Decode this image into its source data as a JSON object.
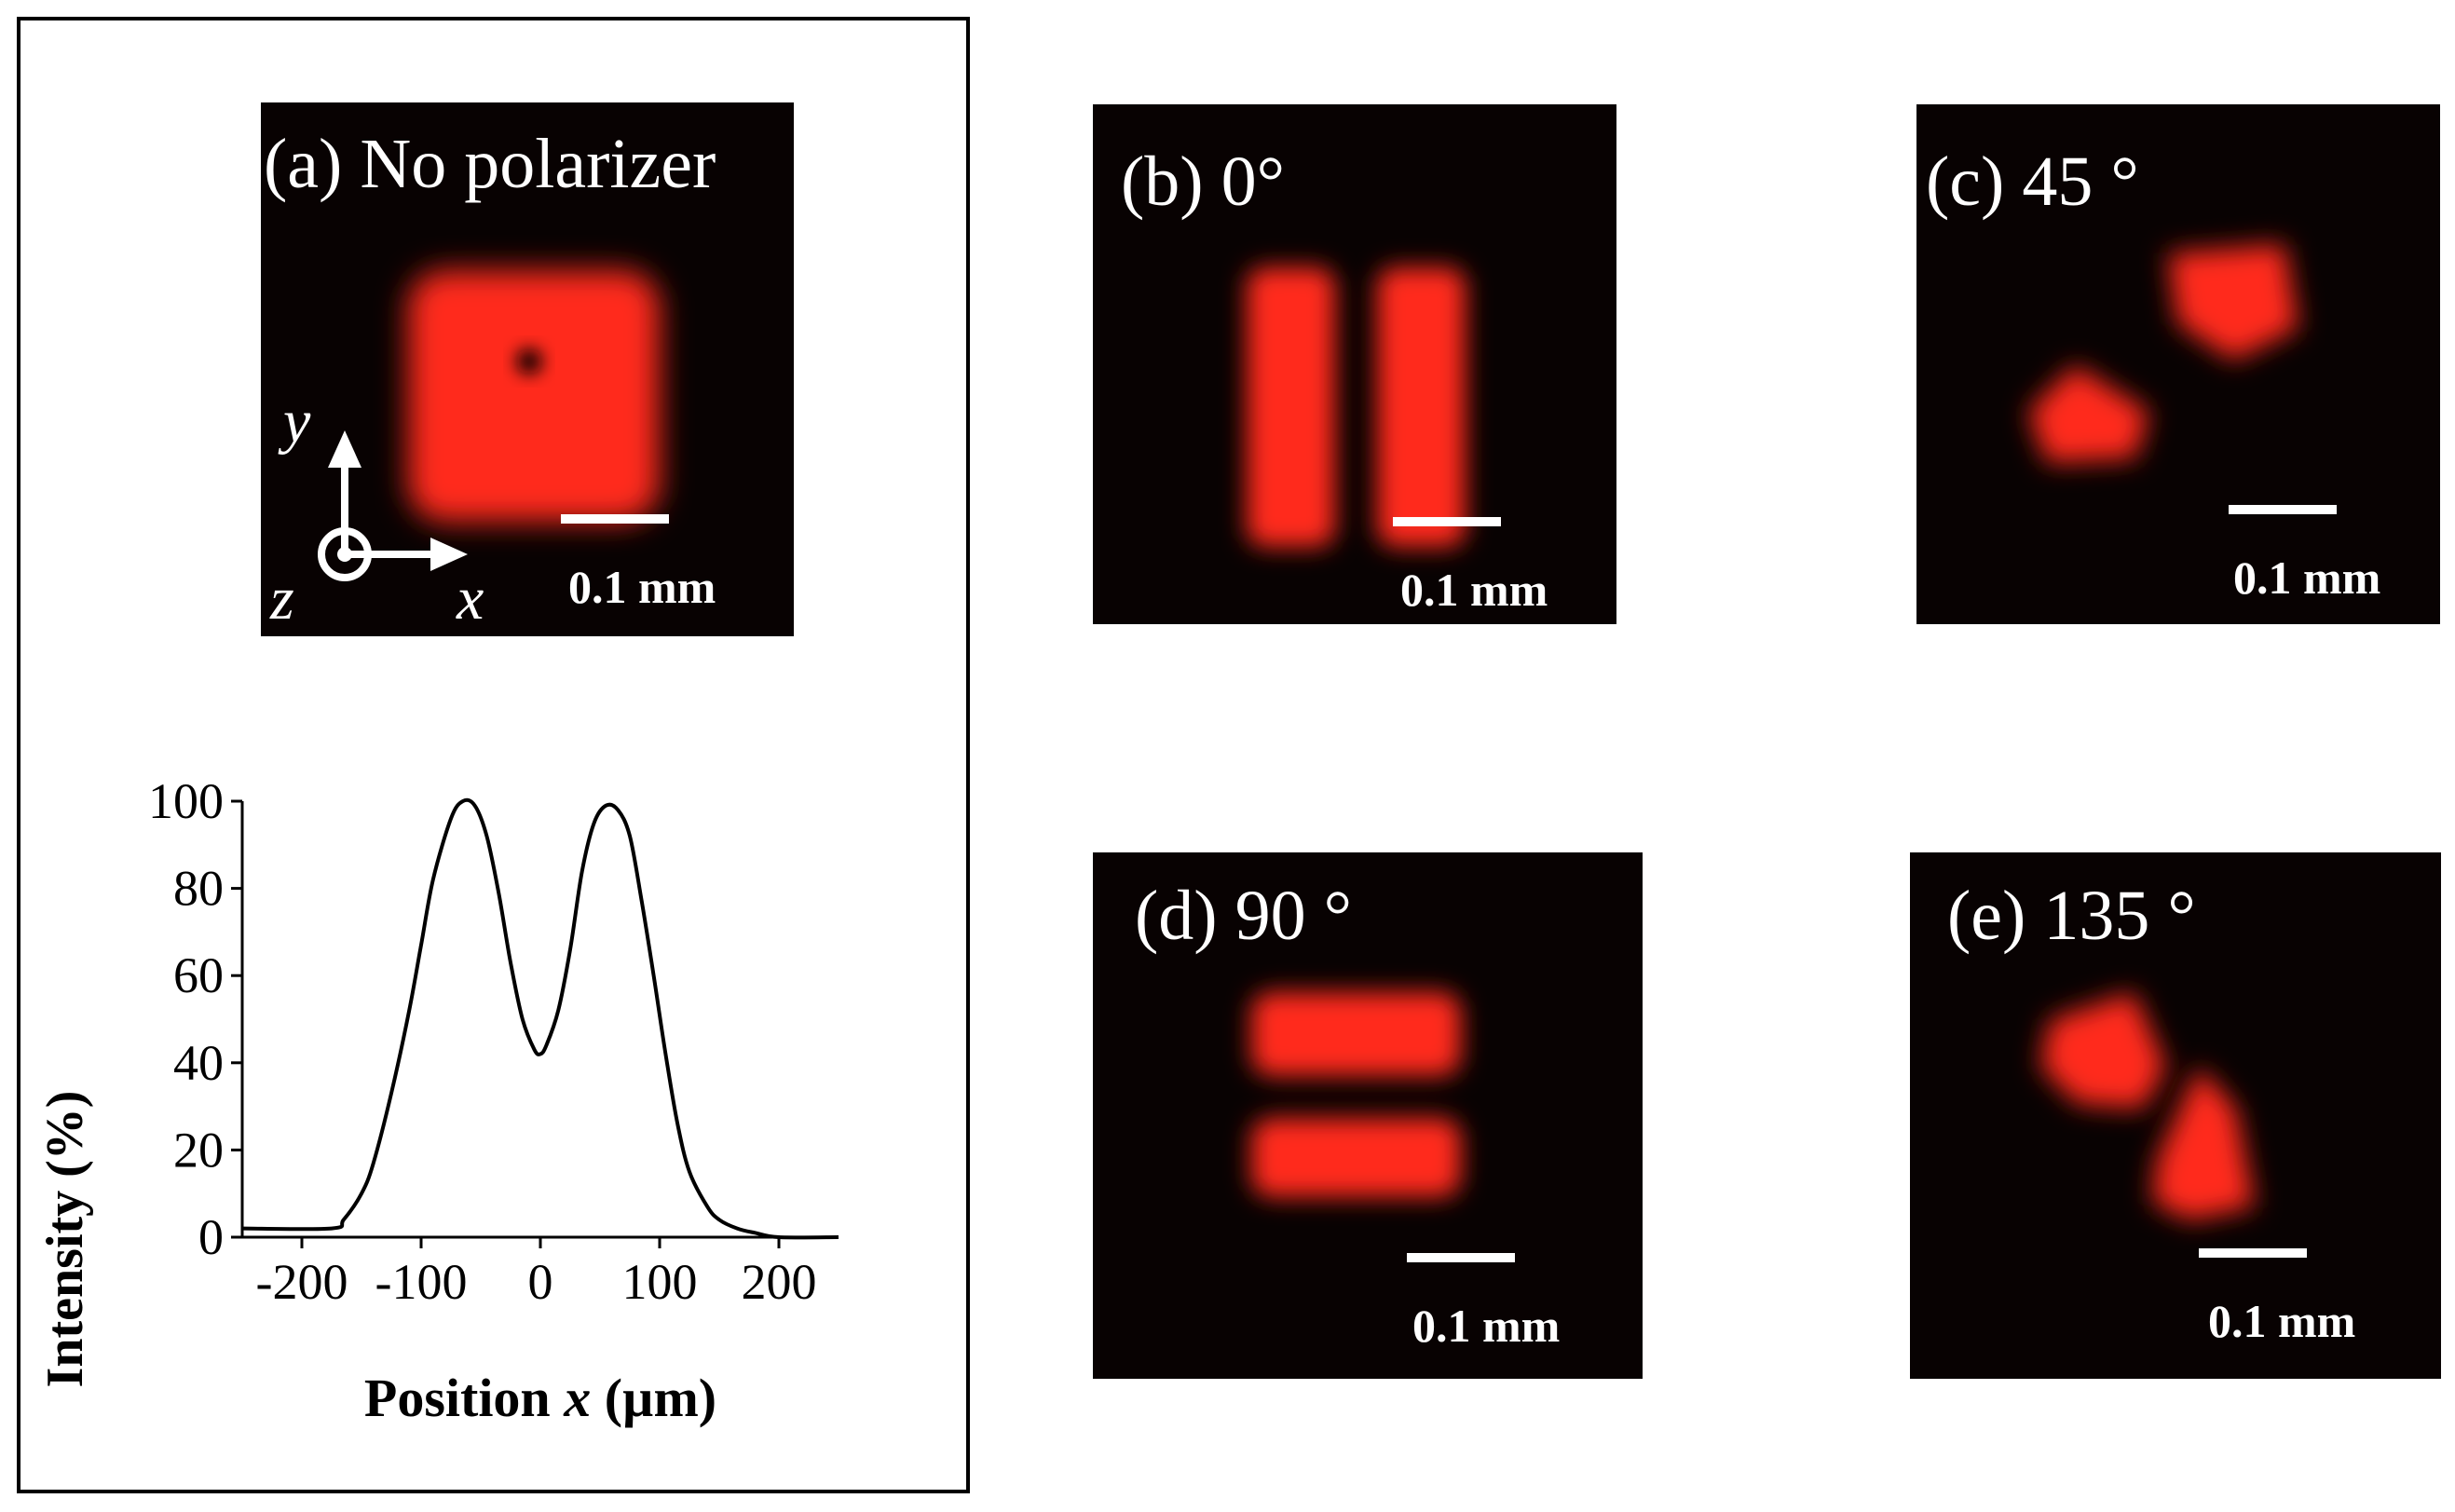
{
  "panels": [
    {
      "id": "a",
      "label": "(a) No polarizer",
      "scale_label": "0.1 mm"
    },
    {
      "id": "b",
      "label": "(b) 0°",
      "scale_label": "0.1 mm"
    },
    {
      "id": "c",
      "label": "(c) 45 °",
      "scale_label": "0.1 mm"
    },
    {
      "id": "d",
      "label": "(d) 90 °",
      "scale_label": "0.1 mm"
    },
    {
      "id": "e",
      "label": "(e) 135 °",
      "scale_label": "0.1 mm"
    }
  ],
  "axes_indicator": {
    "x": "x",
    "y": "y",
    "z": "z"
  },
  "colors": {
    "beam": "#ff2a1a",
    "background": "#080202"
  },
  "chart_data": {
    "type": "line",
    "xlabel": "Position x (µm)",
    "ylabel": "Intensity (%)",
    "xlim": [
      -250,
      250
    ],
    "ylim": [
      0,
      100
    ],
    "xticks": [
      -200,
      -100,
      0,
      100,
      200
    ],
    "yticks": [
      0,
      20,
      40,
      60,
      80,
      100
    ],
    "tick_labels_x": [
      "-200",
      "-100",
      "0",
      "100",
      "200"
    ],
    "tick_labels_y": [
      "0",
      "20",
      "40",
      "60",
      "80",
      "100"
    ],
    "grid": false,
    "series": [
      {
        "x": [
          -250,
          -175,
          -165,
          -150,
          -140,
          -125,
          -110,
          -100,
          -90,
          -75,
          -65,
          -55,
          -45,
          -35,
          -25,
          -15,
          -5,
          0,
          5,
          15,
          25,
          35,
          45,
          55,
          65,
          75,
          85,
          95,
          105,
          115,
          125,
          140,
          150,
          165,
          180,
          200,
          250
        ],
        "y": [
          2,
          2,
          4,
          10,
          17,
          33,
          52,
          67,
          82,
          96,
          100,
          99,
          92,
          79,
          63,
          50,
          43,
          42,
          44,
          52,
          66,
          84,
          95,
          99,
          98,
          92,
          77,
          60,
          42,
          26,
          15,
          7,
          4,
          2,
          1,
          0,
          0
        ]
      }
    ]
  }
}
